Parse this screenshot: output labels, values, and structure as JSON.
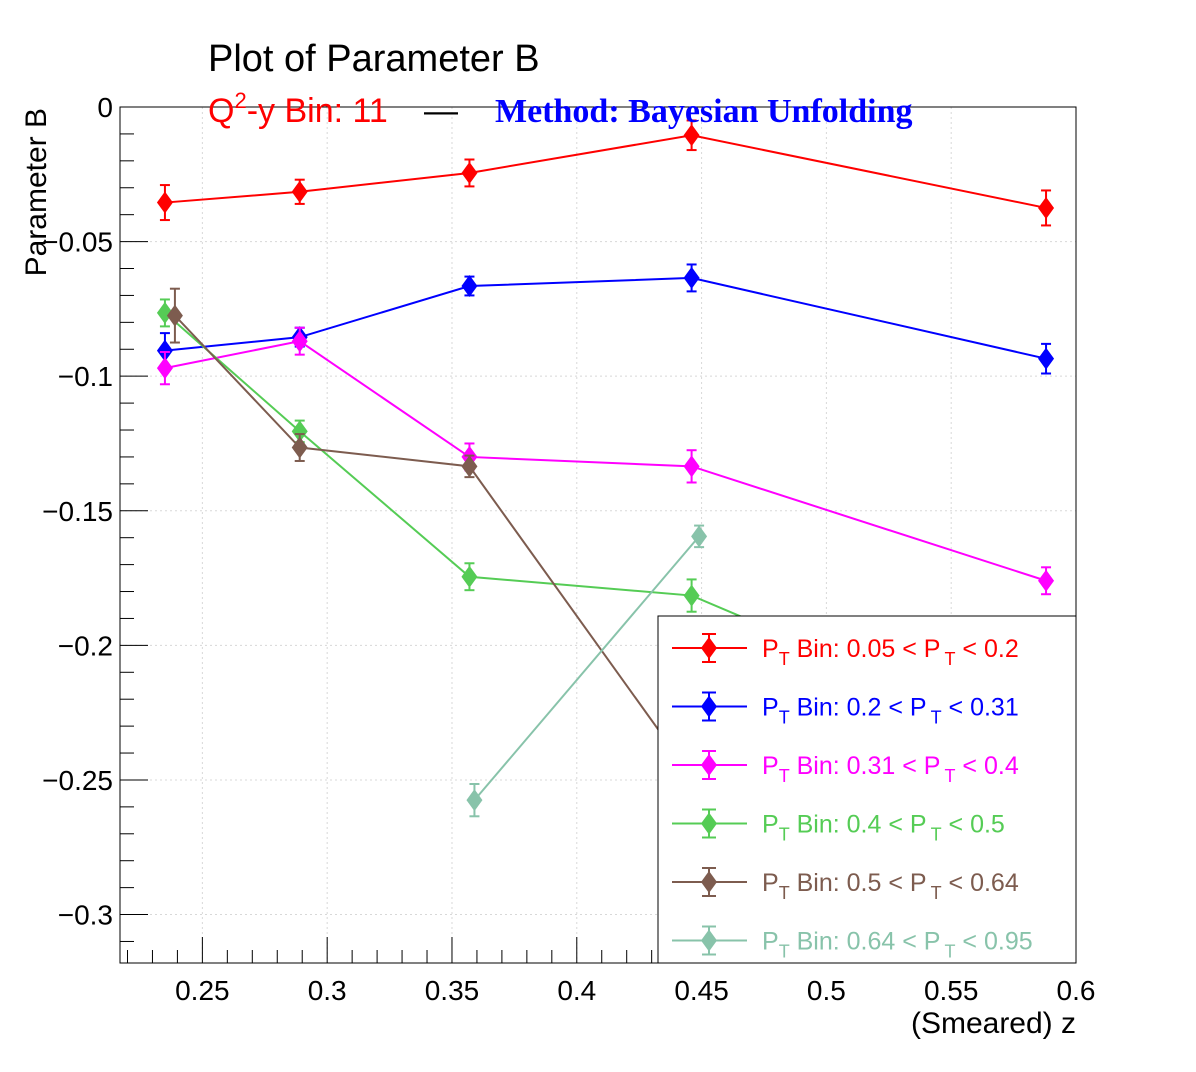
{
  "chart_data": {
    "type": "line",
    "title": "Plot of Parameter B",
    "subtitle_left": {
      "prefix": "Q",
      "sup": "2",
      "suffix": "-y Bin: 11",
      "color": "#ff0000"
    },
    "subtitle_sep": "—",
    "subtitle_right": {
      "text": "Method: Bayesian Unfolding",
      "color": "#0000ff"
    },
    "xlabel": "(Smeared) z",
    "ylabel": "Parameter B",
    "xlim": [
      0.217,
      0.6
    ],
    "ylim": [
      -0.318,
      0.0
    ],
    "x_ticks": [
      {
        "v": 0.25,
        "label": "0.25"
      },
      {
        "v": 0.3,
        "label": "0.3"
      },
      {
        "v": 0.35,
        "label": "0.35"
      },
      {
        "v": 0.4,
        "label": "0.4"
      },
      {
        "v": 0.45,
        "label": "0.45"
      },
      {
        "v": 0.5,
        "label": "0.5"
      },
      {
        "v": 0.55,
        "label": "0.55"
      },
      {
        "v": 0.6,
        "label": "0.6"
      }
    ],
    "y_ticks": [
      {
        "v": 0.0,
        "label": "0"
      },
      {
        "v": -0.05,
        "label": "−0.05"
      },
      {
        "v": -0.1,
        "label": "−0.1"
      },
      {
        "v": -0.15,
        "label": "−0.15"
      },
      {
        "v": -0.2,
        "label": "−0.2"
      },
      {
        "v": -0.25,
        "label": "−0.25"
      },
      {
        "v": -0.3,
        "label": "−0.3"
      }
    ],
    "grid": true,
    "legend_position": "bottom-right",
    "series": [
      {
        "name": "P_T Bin: 0.05 < P_T < 0.2",
        "label": {
          "a": "P",
          "b": "T",
          "c": " Bin: 0.05 < P",
          "d": "T",
          "e": " < 0.2"
        },
        "color": "#ff0000",
        "x": [
          0.235,
          0.289,
          0.357,
          0.446,
          0.588
        ],
        "y": [
          -0.0355,
          -0.0315,
          -0.0245,
          -0.0105,
          -0.0375
        ],
        "err": [
          0.0065,
          0.0045,
          0.005,
          0.0055,
          0.0065
        ]
      },
      {
        "name": "P_T Bin: 0.2 < P_T < 0.31",
        "label": {
          "a": "P",
          "b": "T",
          "c": " Bin: 0.2 < P",
          "d": "T",
          "e": " < 0.31"
        },
        "color": "#0000ff",
        "x": [
          0.235,
          0.289,
          0.357,
          0.446,
          0.588
        ],
        "y": [
          -0.0905,
          -0.0855,
          -0.0665,
          -0.0635,
          -0.0935
        ],
        "err": [
          0.0065,
          0.0035,
          0.0035,
          0.005,
          0.0055
        ]
      },
      {
        "name": "P_T Bin: 0.31 < P_T < 0.4",
        "label": {
          "a": "P",
          "b": "T",
          "c": " Bin: 0.31 < P",
          "d": "T",
          "e": " < 0.4"
        },
        "color": "#ff00ff",
        "x": [
          0.235,
          0.289,
          0.357,
          0.446,
          0.588
        ],
        "y": [
          -0.097,
          -0.087,
          -0.13,
          -0.1335,
          -0.176
        ],
        "err": [
          0.006,
          0.005,
          0.005,
          0.006,
          0.005
        ]
      },
      {
        "name": "P_T Bin: 0.4 < P_T < 0.5",
        "label": {
          "a": "P",
          "b": "T",
          "c": " Bin: 0.4 < P",
          "d": "T",
          "e": " < 0.5"
        },
        "color": "#55cc55",
        "x": [
          0.235,
          0.289,
          0.357,
          0.446,
          0.479
        ],
        "y": [
          -0.0765,
          -0.1205,
          -0.1745,
          -0.1815,
          -0.1945
        ],
        "err": [
          0.005,
          0.004,
          0.005,
          0.006,
          0.0
        ]
      },
      {
        "name": "P_T Bin: 0.5 < P_T < 0.64",
        "label": {
          "a": "P",
          "b": "T",
          "c": " Bin: 0.5 < P",
          "d": "T",
          "e": " < 0.64"
        },
        "color": "#7d5c4f",
        "x": [
          0.239,
          0.289,
          0.357,
          0.439
        ],
        "y": [
          -0.0775,
          -0.1265,
          -0.1335,
          -0.2395
        ],
        "err": [
          0.01,
          0.005,
          0.004,
          0.0
        ]
      },
      {
        "name": "P_T Bin: 0.64 < P_T < 0.95",
        "label": {
          "a": "P",
          "b": "T",
          "c": " Bin: 0.64 < P",
          "d": "T",
          "e": " < 0.95"
        },
        "color": "#88c3aa",
        "x": [
          0.359,
          0.449
        ],
        "y": [
          -0.2575,
          -0.1595
        ],
        "err": [
          0.006,
          0.004
        ]
      }
    ]
  }
}
